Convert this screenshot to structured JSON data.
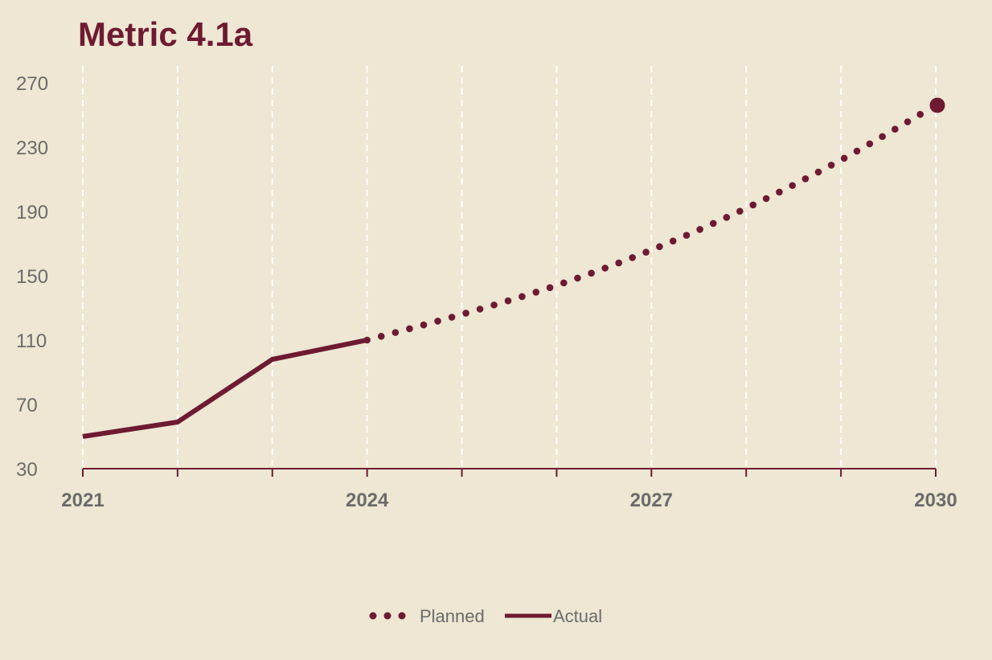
{
  "chart_data": {
    "type": "line",
    "title": "Metric 4.1a",
    "xlabel": "",
    "ylabel": "",
    "xlim": [
      2021,
      2030
    ],
    "ylim": [
      30,
      280
    ],
    "y_ticks": [
      30,
      70,
      110,
      150,
      190,
      230,
      270
    ],
    "x_tick_labels": [
      2021,
      2024,
      2027,
      2030
    ],
    "x_gridlines": [
      2021,
      2022,
      2023,
      2024,
      2025,
      2026,
      2027,
      2028,
      2029,
      2030
    ],
    "grid": "vertical dashed",
    "legend_position": "bottom-center",
    "series": [
      {
        "name": "Planned",
        "style": "dotted",
        "x": [
          2024,
          2025,
          2026,
          2027,
          2028,
          2029,
          2030
        ],
        "y": [
          110,
          126,
          144,
          166,
          192,
          222,
          256
        ],
        "end_marker": true
      },
      {
        "name": "Actual",
        "style": "solid",
        "x": [
          2021,
          2022,
          2023,
          2024
        ],
        "y": [
          50,
          59,
          98,
          110
        ]
      }
    ],
    "colors": {
      "background": "#EDE7D3",
      "series": "#6E1A32",
      "title": "#6E1A32",
      "tick_text": "#6B6B6B",
      "grid": "#FFFFFF"
    }
  }
}
